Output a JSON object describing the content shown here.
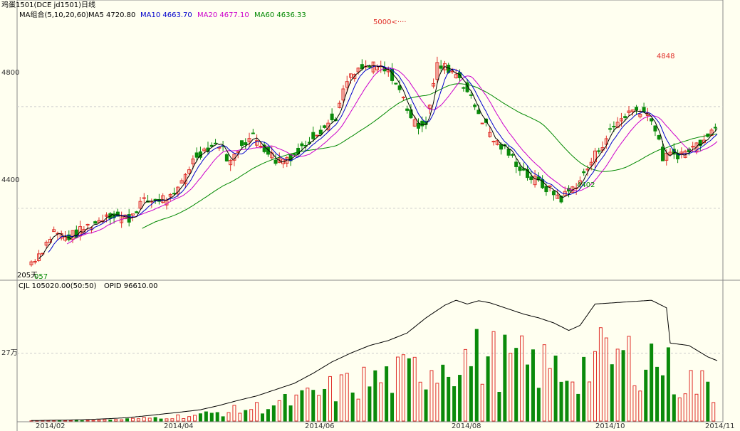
{
  "window_title": "鸡蛋1501(DCE jd1501)日线",
  "ma_legend": {
    "group_label": "MA组合(5,10,20,60)",
    "ma5": "MA5 4720.80",
    "ma10": "MA10 4663.70",
    "ma20": "MA20 4677.10",
    "ma60": "MA60 4636.33"
  },
  "volume_legend": {
    "cjl": "CJL  105020.00(50:50)",
    "opid": "OPID   96610.00"
  },
  "annotations": {
    "high_marker": "5000<····",
    "high_local": "4848",
    "low_local": "4402",
    "bottom_left_days": "205天",
    "bottom_left_value": "057"
  },
  "colors": {
    "background": "#fffff0",
    "up": "#e0302a",
    "down": "#0a8a0a",
    "ma5": "#000000",
    "ma10": "#0000cc",
    "ma20": "#cc00cc",
    "ma60": "#008800",
    "grid": "#cccccc",
    "axis_text": "#333333"
  },
  "chart_data": [
    {
      "type": "candlestick",
      "title": "鸡蛋1501(DCE jd1501)日线",
      "x_ticks": [
        "2014/02",
        "2014/04",
        "2014/06",
        "2014/08",
        "2014/10",
        "2014/11"
      ],
      "y_ticks": [
        "4800",
        "4400"
      ],
      "ylim": [
        4120,
        5180
      ],
      "series": [
        {
          "name": "MA5",
          "color": "#000000"
        },
        {
          "name": "MA10",
          "color": "#0000cc"
        },
        {
          "name": "MA20",
          "color": "#cc00cc"
        },
        {
          "name": "MA60",
          "color": "#008800"
        }
      ],
      "close_path": [
        [
          0,
          4190
        ],
        [
          6,
          4240
        ],
        [
          12,
          4310
        ],
        [
          18,
          4285
        ],
        [
          24,
          4300
        ],
        [
          30,
          4330
        ],
        [
          36,
          4350
        ],
        [
          40,
          4380
        ],
        [
          46,
          4370
        ],
        [
          52,
          4360
        ],
        [
          58,
          4420
        ],
        [
          64,
          4430
        ],
        [
          70,
          4440
        ],
        [
          76,
          4440
        ],
        [
          82,
          4540
        ],
        [
          88,
          4610
        ],
        [
          94,
          4640
        ],
        [
          100,
          4655
        ],
        [
          106,
          4580
        ],
        [
          112,
          4660
        ],
        [
          118,
          4680
        ],
        [
          124,
          4640
        ],
        [
          130,
          4590
        ],
        [
          136,
          4600
        ],
        [
          142,
          4620
        ],
        [
          150,
          4690
        ],
        [
          156,
          4720
        ],
        [
          162,
          4760
        ],
        [
          168,
          4900
        ],
        [
          174,
          4940
        ],
        [
          180,
          4960
        ],
        [
          186,
          4950
        ],
        [
          192,
          4920
        ],
        [
          198,
          4830
        ],
        [
          204,
          4730
        ],
        [
          210,
          4740
        ],
        [
          216,
          4960
        ],
        [
          222,
          4950
        ],
        [
          228,
          4920
        ],
        [
          234,
          4830
        ],
        [
          240,
          4750
        ],
        [
          246,
          4670
        ],
        [
          252,
          4630
        ],
        [
          258,
          4580
        ],
        [
          264,
          4530
        ],
        [
          270,
          4500
        ],
        [
          276,
          4470
        ],
        [
          282,
          4440
        ],
        [
          288,
          4480
        ],
        [
          294,
          4530
        ],
        [
          300,
          4610
        ],
        [
          306,
          4680
        ],
        [
          312,
          4740
        ],
        [
          318,
          4780
        ],
        [
          324,
          4790
        ],
        [
          330,
          4760
        ],
        [
          336,
          4600
        ],
        [
          342,
          4610
        ],
        [
          348,
          4620
        ],
        [
          354,
          4650
        ],
        [
          360,
          4700
        ],
        [
          365,
          4720
        ]
      ]
    },
    {
      "type": "bar",
      "title": "CJL",
      "x_ticks": [
        "2014/02",
        "2014/04",
        "2014/06",
        "2014/08",
        "2014/10",
        "2014/11"
      ],
      "y_ticks": [
        "27万"
      ],
      "ylim": [
        0,
        520000
      ],
      "series": [
        {
          "name": "CJL"
        },
        {
          "name": "OPID"
        }
      ],
      "oi_path": [
        [
          0,
          2000
        ],
        [
          10,
          3000
        ],
        [
          20,
          4000
        ],
        [
          30,
          6000
        ],
        [
          40,
          9000
        ],
        [
          50,
          13000
        ],
        [
          60,
          20000
        ],
        [
          70,
          28000
        ],
        [
          80,
          36000
        ],
        [
          90,
          45000
        ],
        [
          100,
          62000
        ],
        [
          110,
          82000
        ],
        [
          120,
          100000
        ],
        [
          130,
          125000
        ],
        [
          140,
          150000
        ],
        [
          150,
          190000
        ],
        [
          160,
          235000
        ],
        [
          170,
          270000
        ],
        [
          180,
          300000
        ],
        [
          190,
          320000
        ],
        [
          200,
          350000
        ],
        [
          210,
          410000
        ],
        [
          220,
          460000
        ],
        [
          226,
          480000
        ],
        [
          232,
          465000
        ],
        [
          238,
          478000
        ],
        [
          244,
          470000
        ],
        [
          250,
          455000
        ],
        [
          256,
          440000
        ],
        [
          262,
          425000
        ],
        [
          270,
          410000
        ],
        [
          278,
          390000
        ],
        [
          286,
          360000
        ],
        [
          292,
          380000
        ],
        [
          300,
          465000
        ],
        [
          310,
          470000
        ],
        [
          320,
          475000
        ],
        [
          330,
          480000
        ],
        [
          338,
          450000
        ],
        [
          340,
          310000
        ],
        [
          350,
          300000
        ],
        [
          360,
          255000
        ],
        [
          365,
          240000
        ]
      ]
    }
  ]
}
